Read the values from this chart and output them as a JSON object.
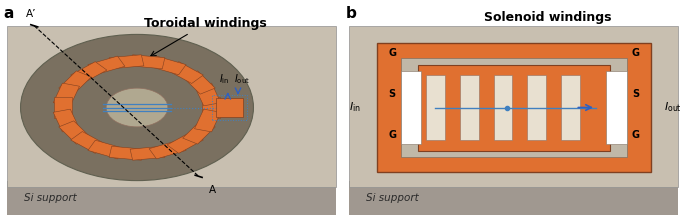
{
  "fig_width": 6.85,
  "fig_height": 2.15,
  "dpi": 100,
  "bg_color": "#c8bfb0",
  "panel_a_label": "a",
  "panel_b_label": "b",
  "label_a_toroidal": "Toroidal windings",
  "label_b_solenoid": "Solenoid windings",
  "label_si_support_a": "Si support",
  "label_si_support_b": "Si support",
  "label_A": "A",
  "label_Aprime": "A’",
  "orange_color": "#E07030",
  "blue_color": "#4080C0",
  "dark_color": "#1a1a1a",
  "shadow_color": "#a09890",
  "platform_color": "#c8bfb0",
  "annotation_fontsize": 8,
  "panel_label_fontsize": 11,
  "title_fontsize": 9
}
